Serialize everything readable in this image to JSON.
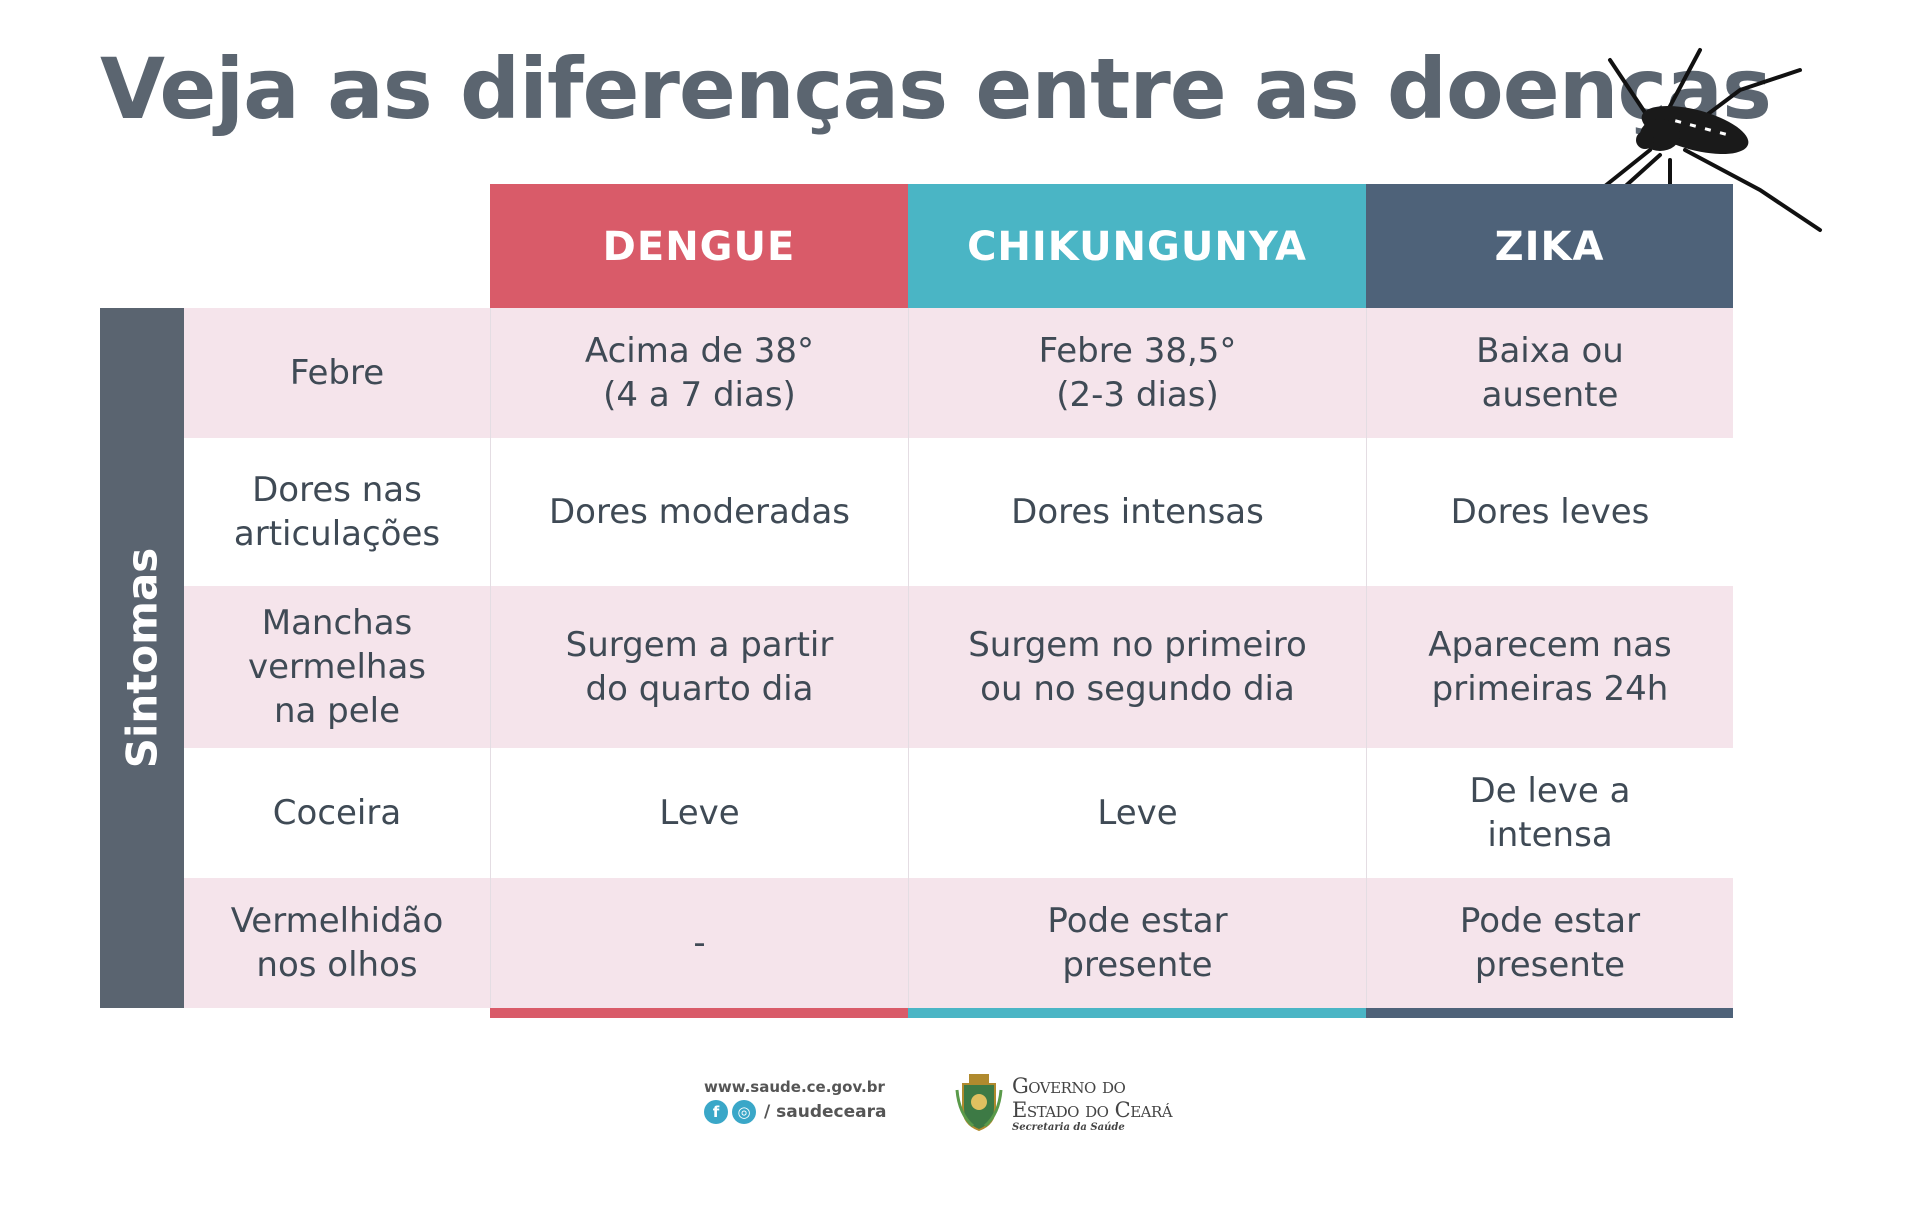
{
  "title": "Veja as diferenças entre as doenças",
  "side_label": "Sintomas",
  "columns": [
    "DENGUE",
    "CHIKUNGUNYA",
    "ZIKA"
  ],
  "colors": {
    "dengue": "#d95b69",
    "chikungunya": "#4ab5c5",
    "zika": "#4e6279",
    "side": "#5a6470",
    "row_pink": "#f5e4eb"
  },
  "rows": [
    {
      "label": "Febre",
      "dengue": "Acima de 38°\n(4 a 7 dias)",
      "chikungunya": "Febre 38,5°\n(2-3 dias)",
      "zika": "Baixa ou\nausente"
    },
    {
      "label": "Dores nas\narticulações",
      "dengue": "Dores moderadas",
      "chikungunya": "Dores intensas",
      "zika": "Dores leves"
    },
    {
      "label": "Manchas\nvermelhas\nna pele",
      "dengue": "Surgem a partir\ndo quarto dia",
      "chikungunya": "Surgem no primeiro\nou no segundo dia",
      "zika": "Aparecem nas\nprimeiras 24h"
    },
    {
      "label": "Coceira",
      "dengue": "Leve",
      "chikungunya": "Leve",
      "zika": "De leve a\nintensa"
    },
    {
      "label": "Vermelhidão\nnos olhos",
      "dengue": "-",
      "chikungunya": "Pode estar\npresente",
      "zika": "Pode estar\npresente"
    }
  ],
  "footer": {
    "url": "www.saude.ce.gov.br",
    "handle": "/ saudeceara",
    "gov_line1": "Governo do",
    "gov_line2": "Estado do Ceará",
    "gov_line3": "Secretaria da Saúde"
  },
  "icons": [
    "mosquito-icon",
    "facebook-icon",
    "instagram-icon",
    "state-crest-icon"
  ]
}
